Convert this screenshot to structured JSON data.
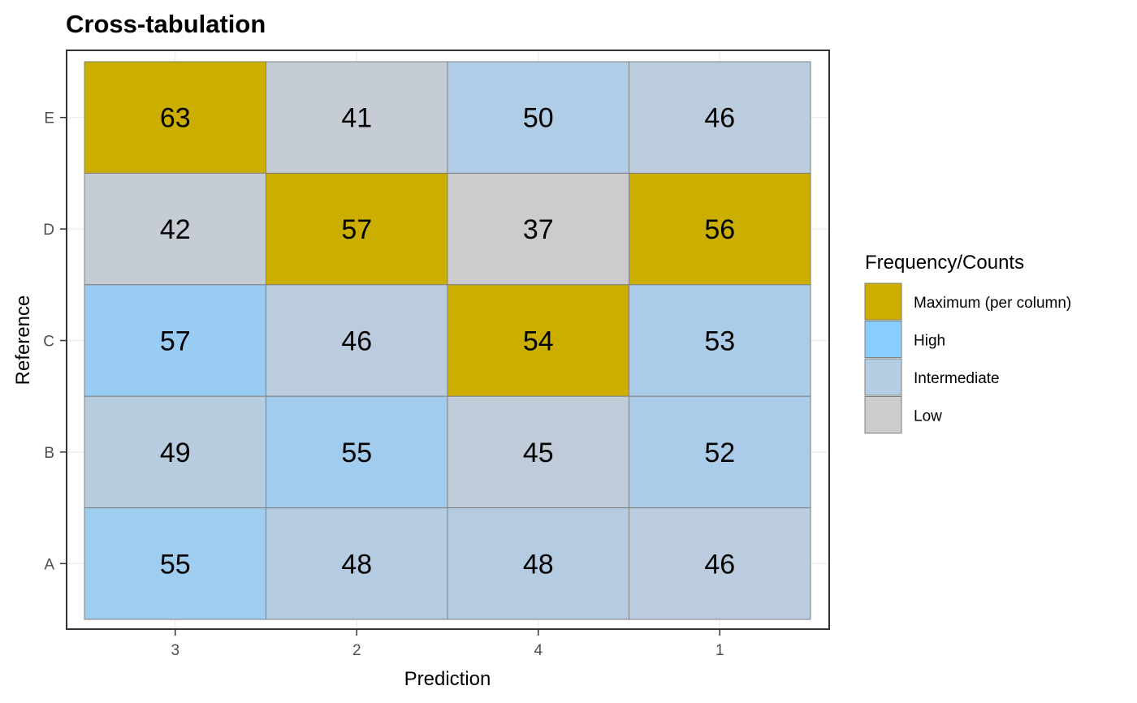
{
  "chart_data": {
    "type": "heatmap",
    "title": "Cross-tabulation",
    "xlabel": "Prediction",
    "ylabel": "Reference",
    "x_categories": [
      "3",
      "2",
      "4",
      "1"
    ],
    "y_categories": [
      "E",
      "D",
      "C",
      "B",
      "A"
    ],
    "values": [
      [
        63,
        41,
        50,
        46
      ],
      [
        42,
        57,
        37,
        56
      ],
      [
        57,
        46,
        54,
        53
      ],
      [
        49,
        55,
        45,
        52
      ],
      [
        55,
        48,
        48,
        46
      ]
    ],
    "cell_colors": [
      [
        "#ccae00",
        "#c5ccd4",
        "#afcde6",
        "#bbccde"
      ],
      [
        "#c5ccd4",
        "#ccae00",
        "#cccccc",
        "#ccae00"
      ],
      [
        "#98ccf2",
        "#bbccde",
        "#ccae00",
        "#abcce9"
      ],
      [
        "#b7ccdf",
        "#a1ccee",
        "#bfcbd9",
        "#abcce9"
      ],
      [
        "#9fcdf0",
        "#b4cbe1",
        "#b4cbe1",
        "#bbccde"
      ]
    ],
    "grid": true,
    "legend": {
      "title": "Frequency/Counts",
      "position": "right",
      "items": [
        {
          "label": "Maximum (per column)",
          "color": "#ccae00"
        },
        {
          "label": "High",
          "color": "#87ceff"
        },
        {
          "label": "Intermediate",
          "color": "#b4cde2"
        },
        {
          "label": "Low",
          "color": "#cccccc"
        }
      ]
    }
  }
}
